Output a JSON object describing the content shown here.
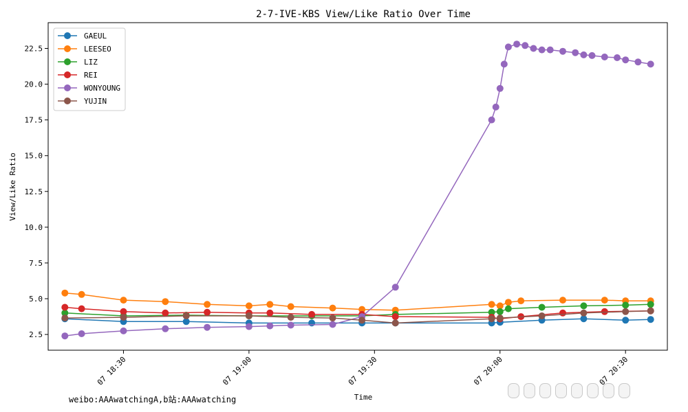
{
  "chart_data": {
    "type": "line",
    "title": "2-7-IVE-KBS View/Like Ratio Over Time",
    "xlabel": "Time",
    "ylabel": "View/Like Ratio",
    "x_ticks": [
      "07 18:30",
      "07 19:00",
      "07 19:30",
      "07 20:00",
      "07 20:30"
    ],
    "y_ticks": [
      "2.5",
      "5.0",
      "7.5",
      "10.0",
      "12.5",
      "15.0",
      "17.5",
      "20.0",
      "22.5"
    ],
    "x_range_minutes": [
      "18:12",
      "20:40"
    ],
    "ylim": [
      1.4,
      24.3
    ],
    "legend_position": "upper-left",
    "grid": false,
    "series": [
      {
        "name": "GAEUL",
        "color": "#1f77b4",
        "points": [
          [
            "18:16",
            3.6
          ],
          [
            "18:30",
            3.4
          ],
          [
            "18:45",
            3.4
          ],
          [
            "19:00",
            3.3
          ],
          [
            "19:15",
            3.3
          ],
          [
            "19:27",
            3.3
          ],
          [
            "19:35",
            3.3
          ],
          [
            "19:58",
            3.3
          ],
          [
            "20:00",
            3.35
          ],
          [
            "20:10",
            3.5
          ],
          [
            "20:20",
            3.6
          ],
          [
            "20:30",
            3.5
          ],
          [
            "20:36",
            3.55
          ]
        ]
      },
      {
        "name": "LEESEO",
        "color": "#ff7f0e",
        "points": [
          [
            "18:16",
            5.4
          ],
          [
            "18:20",
            5.3
          ],
          [
            "18:30",
            4.9
          ],
          [
            "18:40",
            4.8
          ],
          [
            "18:50",
            4.6
          ],
          [
            "19:00",
            4.5
          ],
          [
            "19:05",
            4.6
          ],
          [
            "19:10",
            4.45
          ],
          [
            "19:20",
            4.35
          ],
          [
            "19:27",
            4.25
          ],
          [
            "19:35",
            4.2
          ],
          [
            "19:58",
            4.6
          ],
          [
            "20:00",
            4.5
          ],
          [
            "20:02",
            4.75
          ],
          [
            "20:05",
            4.85
          ],
          [
            "20:15",
            4.9
          ],
          [
            "20:25",
            4.9
          ],
          [
            "20:30",
            4.85
          ],
          [
            "20:36",
            4.85
          ]
        ]
      },
      {
        "name": "LIZ",
        "color": "#2ca02c",
        "points": [
          [
            "18:16",
            4.0
          ],
          [
            "18:30",
            3.8
          ],
          [
            "18:45",
            3.85
          ],
          [
            "19:00",
            3.8
          ],
          [
            "19:15",
            3.8
          ],
          [
            "19:27",
            3.8
          ],
          [
            "19:35",
            3.9
          ],
          [
            "19:58",
            4.05
          ],
          [
            "20:00",
            4.1
          ],
          [
            "20:02",
            4.3
          ],
          [
            "20:10",
            4.4
          ],
          [
            "20:20",
            4.5
          ],
          [
            "20:30",
            4.55
          ],
          [
            "20:36",
            4.6
          ]
        ]
      },
      {
        "name": "REI",
        "color": "#d62728",
        "points": [
          [
            "18:16",
            4.4
          ],
          [
            "18:20",
            4.3
          ],
          [
            "18:30",
            4.1
          ],
          [
            "18:40",
            4.0
          ],
          [
            "18:50",
            4.05
          ],
          [
            "19:00",
            4.0
          ],
          [
            "19:05",
            4.0
          ],
          [
            "19:15",
            3.9
          ],
          [
            "19:27",
            3.9
          ],
          [
            "19:35",
            3.75
          ],
          [
            "19:58",
            3.7
          ],
          [
            "20:00",
            3.6
          ],
          [
            "20:05",
            3.75
          ],
          [
            "20:15",
            4.0
          ],
          [
            "20:25",
            4.1
          ],
          [
            "20:36",
            4.15
          ]
        ]
      },
      {
        "name": "WONYOUNG",
        "color": "#9467bd",
        "points": [
          [
            "18:16",
            2.4
          ],
          [
            "18:20",
            2.55
          ],
          [
            "18:30",
            2.75
          ],
          [
            "18:40",
            2.9
          ],
          [
            "18:50",
            3.0
          ],
          [
            "19:00",
            3.05
          ],
          [
            "19:05",
            3.1
          ],
          [
            "19:10",
            3.15
          ],
          [
            "19:20",
            3.2
          ],
          [
            "19:27",
            3.75
          ],
          [
            "19:35",
            5.8
          ],
          [
            "19:58",
            17.5
          ],
          [
            "19:59",
            18.4
          ],
          [
            "20:00",
            19.7
          ],
          [
            "20:01",
            21.4
          ],
          [
            "20:02",
            22.6
          ],
          [
            "20:04",
            22.8
          ],
          [
            "20:06",
            22.7
          ],
          [
            "20:08",
            22.5
          ],
          [
            "20:10",
            22.4
          ],
          [
            "20:12",
            22.4
          ],
          [
            "20:15",
            22.3
          ],
          [
            "20:18",
            22.2
          ],
          [
            "20:20",
            22.05
          ],
          [
            "20:22",
            22.0
          ],
          [
            "20:25",
            21.9
          ],
          [
            "20:28",
            21.85
          ],
          [
            "20:30",
            21.7
          ],
          [
            "20:33",
            21.55
          ],
          [
            "20:36",
            21.4
          ]
        ]
      },
      {
        "name": "YUJIN",
        "color": "#8c564b",
        "points": [
          [
            "18:16",
            3.65
          ],
          [
            "18:30",
            3.7
          ],
          [
            "18:45",
            3.8
          ],
          [
            "19:00",
            3.8
          ],
          [
            "19:10",
            3.7
          ],
          [
            "19:20",
            3.65
          ],
          [
            "19:27",
            3.5
          ],
          [
            "19:35",
            3.3
          ],
          [
            "19:58",
            3.6
          ],
          [
            "20:00",
            3.65
          ],
          [
            "20:10",
            3.8
          ],
          [
            "20:20",
            4.0
          ],
          [
            "20:30",
            4.1
          ],
          [
            "20:36",
            4.15
          ]
        ]
      }
    ]
  },
  "watermark": "weibo:AAAwatchingA,b站:AAAwatching"
}
